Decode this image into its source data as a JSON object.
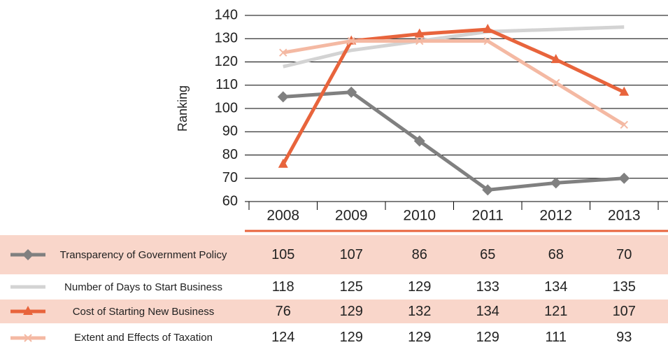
{
  "chart_data": {
    "type": "line",
    "y_label": "Ranking",
    "categories": [
      "2008",
      "2009",
      "2010",
      "2011",
      "2012",
      "2013"
    ],
    "ylim": [
      60,
      140
    ],
    "yticks": [
      60,
      70,
      80,
      90,
      100,
      110,
      120,
      130,
      140
    ],
    "grid": true,
    "series": [
      {
        "name": "Transparency of Government Policy",
        "color": "#808080",
        "marker": "diamond",
        "values": [
          105,
          107,
          86,
          65,
          68,
          70
        ]
      },
      {
        "name": "Number of Days to Start Business",
        "color": "#d3d3d3",
        "marker": "none",
        "values": [
          118,
          125,
          129,
          133,
          134,
          135
        ]
      },
      {
        "name": "Cost of Starting New Business",
        "color": "#e8643c",
        "marker": "triangle",
        "values": [
          76,
          129,
          132,
          134,
          121,
          107
        ]
      },
      {
        "name": "Extent and Effects of Taxation",
        "color": "#f4b9a3",
        "marker": "x",
        "values": [
          124,
          129,
          129,
          129,
          111,
          93
        ]
      }
    ]
  }
}
